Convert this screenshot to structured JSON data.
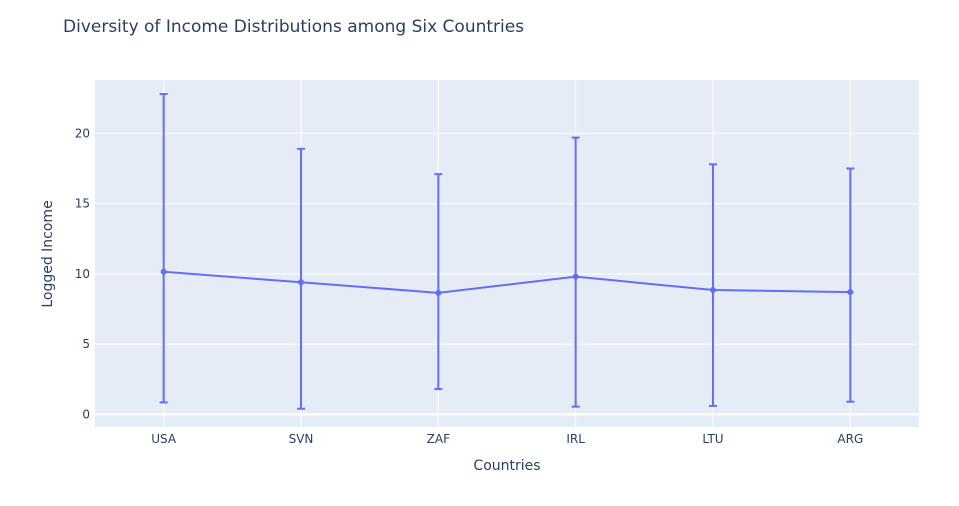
{
  "chart_data": {
    "type": "line",
    "title": "Diversity of Income Distributions among Six Countries",
    "xlabel": "Countries",
    "ylabel": "Logged Income",
    "categories": [
      "USA",
      "SVN",
      "ZAF",
      "IRL",
      "LTU",
      "ARG"
    ],
    "series": [
      {
        "values": [
          10.15,
          9.4,
          8.65,
          9.8,
          8.85,
          8.7
        ],
        "error_low": [
          0.85,
          0.4,
          1.8,
          0.55,
          0.6,
          0.9
        ],
        "error_high": [
          22.8,
          18.9,
          17.1,
          19.7,
          17.8,
          17.5
        ]
      }
    ],
    "ylim": [
      -0.9,
      23.8
    ],
    "yticks": [
      0,
      5,
      10,
      15,
      20
    ],
    "ytick_labels": [
      "0",
      "5",
      "10",
      "15",
      "20"
    ],
    "grid": true,
    "legend": "none",
    "colors": {
      "series": "#636efa",
      "plot_background": "#e5ecf6",
      "grid": "#ffffff",
      "text": "#2a3f5f"
    }
  }
}
